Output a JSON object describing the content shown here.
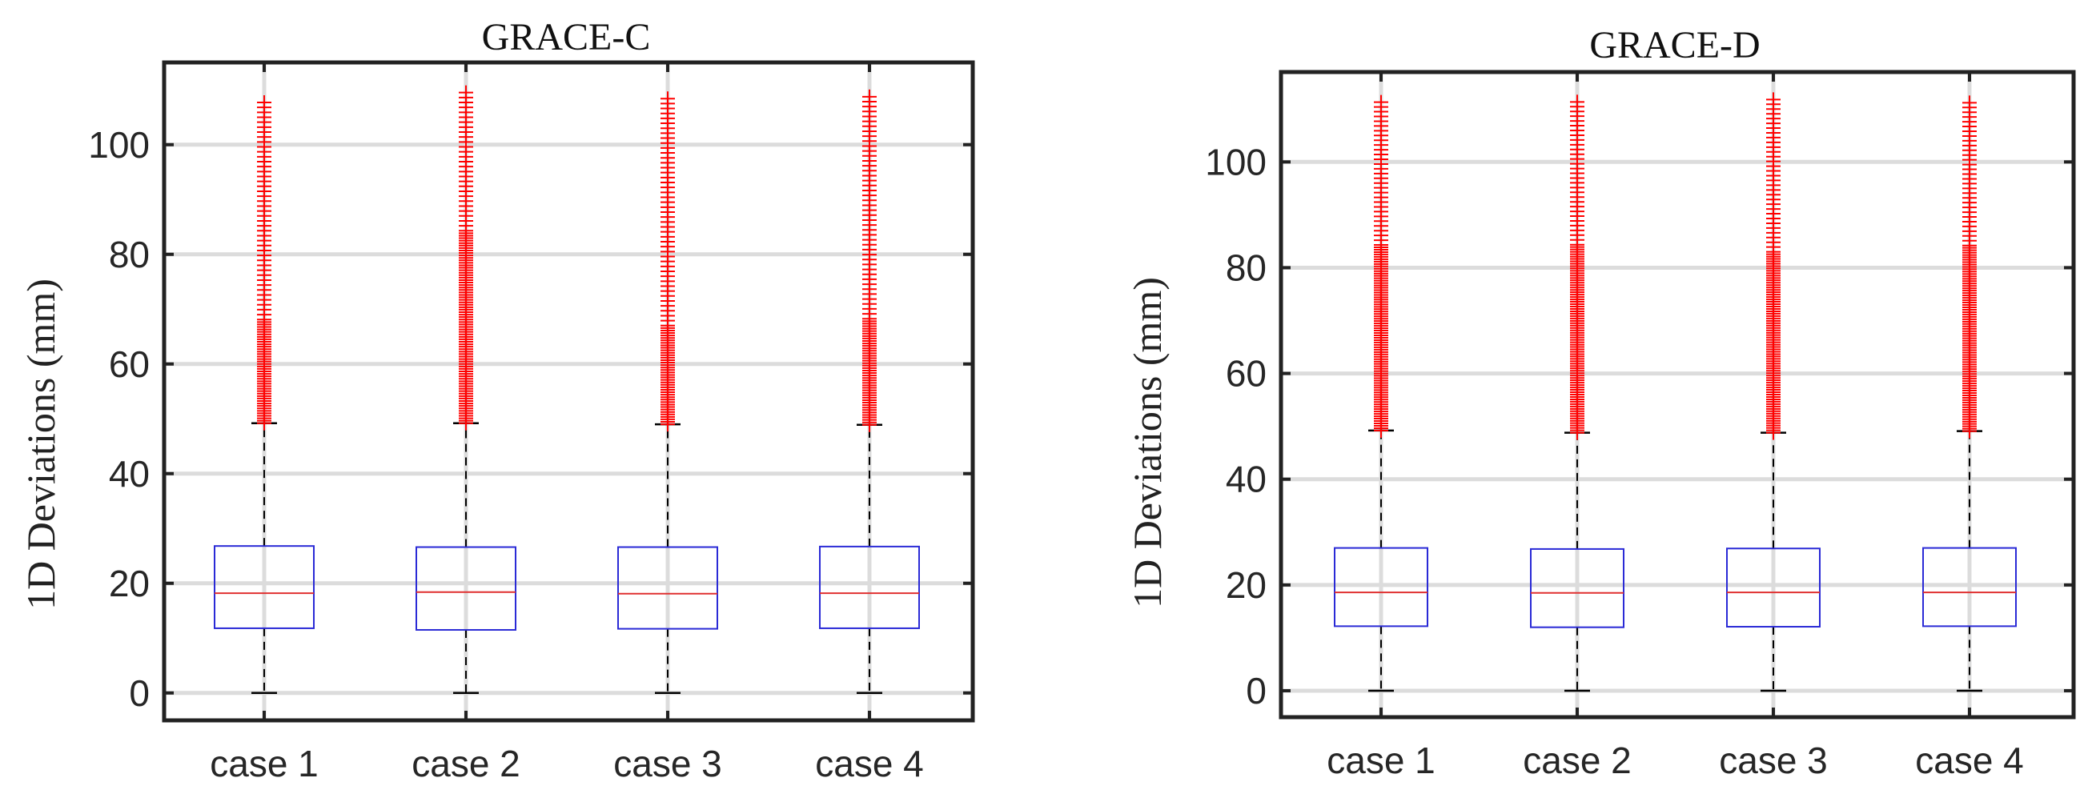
{
  "chart_data": [
    {
      "type": "boxplot",
      "title": "GRACE-C",
      "ylabel": "1D Deviations (mm)",
      "xlabel": "",
      "ylim": [
        -5,
        115
      ],
      "yticks": [
        0,
        20,
        40,
        60,
        80,
        100
      ],
      "grid": true,
      "categories": [
        "case 1",
        "case 2",
        "case 3",
        "case 4"
      ],
      "boxes": [
        {
          "name": "case 1",
          "whisker_low": 0,
          "q1": 11.8,
          "median": 18.2,
          "q3": 26.8,
          "whisker_high": 49.2,
          "outliers_from": 49.2,
          "outliers_to": 108,
          "dense_to": 68
        },
        {
          "name": "case 2",
          "whisker_low": 0,
          "q1": 11.5,
          "median": 18.4,
          "q3": 26.6,
          "whisker_high": 49.2,
          "outliers_from": 49.2,
          "outliers_to": 110,
          "dense_to": 84
        },
        {
          "name": "case 3",
          "whisker_low": 0,
          "q1": 11.7,
          "median": 18.1,
          "q3": 26.6,
          "whisker_high": 49.0,
          "outliers_from": 49.0,
          "outliers_to": 109,
          "dense_to": 67
        },
        {
          "name": "case 4",
          "whisker_low": 0,
          "q1": 11.8,
          "median": 18.2,
          "q3": 26.7,
          "whisker_high": 48.9,
          "outliers_from": 48.9,
          "outliers_to": 109,
          "dense_to": 68
        }
      ],
      "colors": {
        "box": "#2a2ad6",
        "median": "#e03030",
        "outlier": "#ff0000",
        "whisker": "#000000",
        "grid": "#dcdcdc"
      }
    },
    {
      "type": "boxplot",
      "title": "GRACE-D",
      "ylabel": "1D Deviations (mm)",
      "xlabel": "",
      "ylim": [
        -5,
        117
      ],
      "yticks": [
        0,
        20,
        40,
        60,
        80,
        100
      ],
      "grid": true,
      "categories": [
        "case 1",
        "case 2",
        "case 3",
        "case 4"
      ],
      "boxes": [
        {
          "name": "case 1",
          "whisker_low": 0,
          "q1": 12.2,
          "median": 18.6,
          "q3": 27.0,
          "whisker_high": 49.2,
          "outliers_from": 49.2,
          "outliers_to": 112,
          "dense_to": 84
        },
        {
          "name": "case 2",
          "whisker_low": 0,
          "q1": 12.0,
          "median": 18.5,
          "q3": 26.8,
          "whisker_high": 48.8,
          "outliers_from": 48.8,
          "outliers_to": 112,
          "dense_to": 84
        },
        {
          "name": "case 3",
          "whisker_low": 0,
          "q1": 12.1,
          "median": 18.6,
          "q3": 26.9,
          "whisker_high": 48.8,
          "outliers_from": 48.8,
          "outliers_to": 112,
          "dense_to": 83
        },
        {
          "name": "case 4",
          "whisker_low": 0,
          "q1": 12.2,
          "median": 18.6,
          "q3": 27.0,
          "whisker_high": 49.1,
          "outliers_from": 49.1,
          "outliers_to": 112,
          "dense_to": 84
        }
      ],
      "colors": {
        "box": "#2a2ad6",
        "median": "#e03030",
        "outlier": "#ff0000",
        "whisker": "#000000",
        "grid": "#dcdcdc"
      }
    }
  ]
}
